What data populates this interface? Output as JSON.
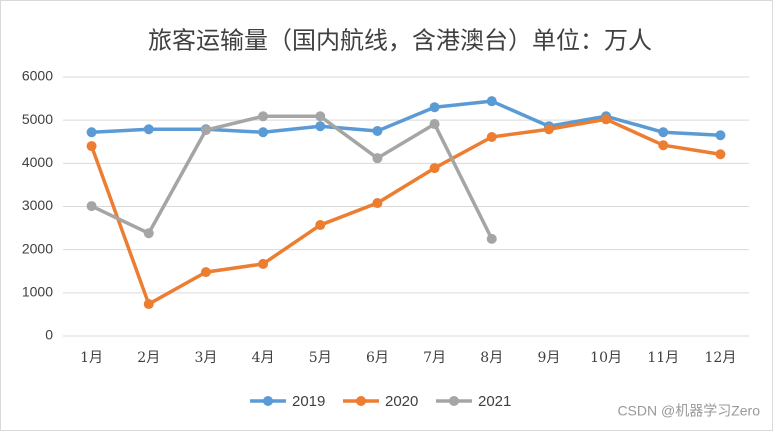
{
  "chart_data": {
    "type": "line",
    "title": "旅客运输量（国内航线，含港澳台）单位：万人",
    "categories": [
      "1月",
      "2月",
      "3月",
      "4月",
      "5月",
      "6月",
      "7月",
      "8月",
      "9月",
      "10月",
      "11月",
      "12月"
    ],
    "series": [
      {
        "name": "2019",
        "color": "#5b9bd5",
        "values": [
          4720,
          4790,
          4790,
          4720,
          4860,
          4750,
          5300,
          5440,
          4860,
          5090,
          4720,
          4650
        ]
      },
      {
        "name": "2020",
        "color": "#ed7d31",
        "values": [
          4400,
          740,
          1480,
          1670,
          2570,
          3080,
          3890,
          4610,
          4790,
          5020,
          4420,
          4210
        ]
      },
      {
        "name": "2021",
        "color": "#a5a5a5",
        "values": [
          3010,
          2380,
          4770,
          5090,
          5090,
          4120,
          4910,
          2250,
          null,
          null,
          null,
          null
        ]
      }
    ],
    "ylim": [
      0,
      6000
    ],
    "yticks": [
      0,
      1000,
      2000,
      3000,
      4000,
      5000,
      6000
    ],
    "grid": true,
    "legend": "bottom",
    "watermark": "CSDN @机器学习Zero"
  }
}
